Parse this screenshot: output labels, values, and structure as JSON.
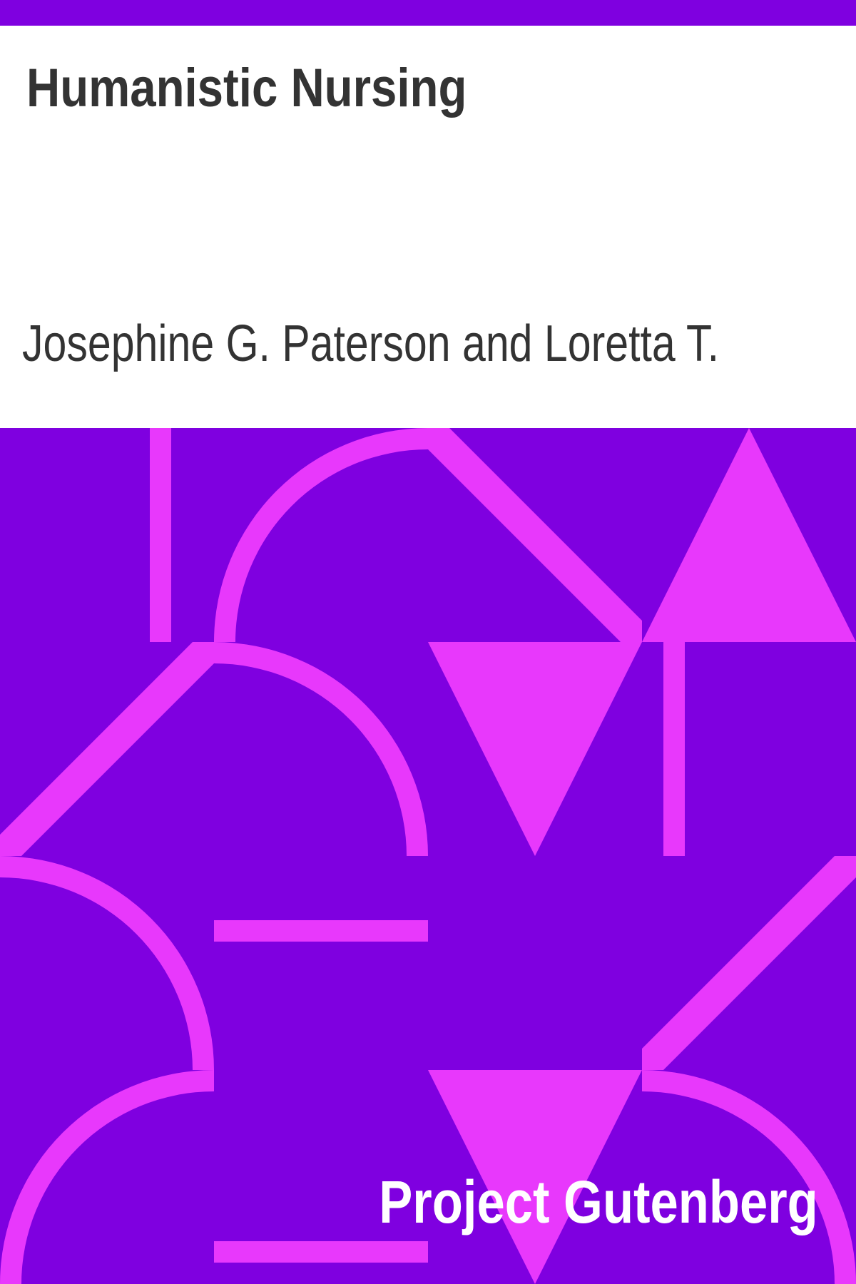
{
  "cover": {
    "title": "Humanistic Nursing",
    "author": "Josephine G. Paterson and Loretta T.",
    "publisher": "Project Gutenberg"
  },
  "colors": {
    "background": "#ffffff",
    "accent_dark": "#7f00e0",
    "accent_light": "#e838fc",
    "text": "#333333",
    "publisher_text": "#ffffff"
  }
}
